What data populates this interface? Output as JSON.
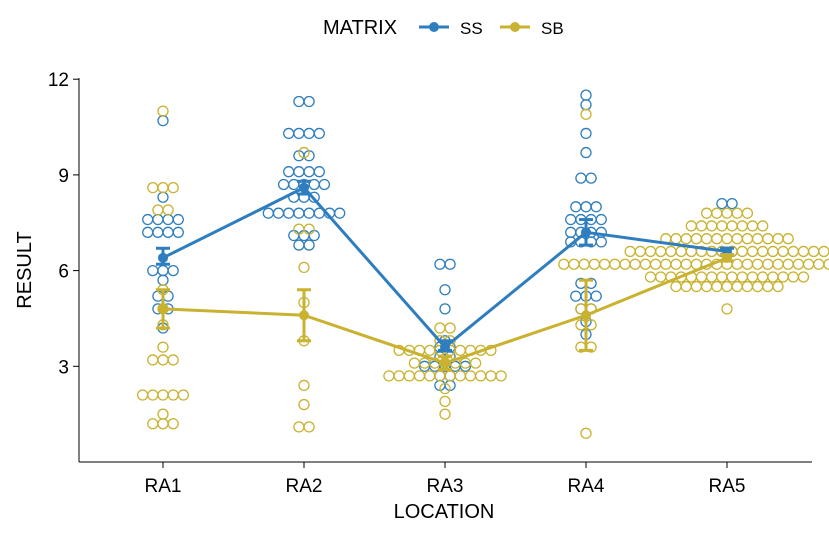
{
  "chart_data": {
    "type": "line",
    "xlabel": "LOCATION",
    "ylabel": "RESULT",
    "categories": [
      "RA1",
      "RA2",
      "RA3",
      "RA4",
      "RA5"
    ],
    "ylim": [
      0,
      12
    ],
    "yticks": [
      3,
      6,
      9,
      12
    ],
    "grid": false,
    "legend_title": "MATRIX",
    "legend_position": "top",
    "series": [
      {
        "name": "SS",
        "color": "#2E7EBF",
        "means": [
          6.4,
          8.6,
          3.6,
          7.2,
          6.6
        ],
        "error": [
          [
            6.2,
            6.7
          ],
          [
            8.4,
            8.8
          ],
          [
            3.5,
            3.8
          ],
          [
            6.8,
            7.6
          ],
          [
            6.5,
            6.7
          ]
        ],
        "points": [
          [
            10.7,
            8.3,
            7.6,
            7.6,
            7.6,
            7.6,
            7.2,
            7.2,
            7.2,
            7.2,
            6.0,
            6.0,
            6.0,
            5.7,
            5.2,
            5.2,
            4.8,
            4.8,
            4.2
          ],
          [
            11.3,
            11.3,
            10.3,
            10.3,
            10.3,
            10.3,
            9.6,
            9.6,
            9.1,
            9.1,
            9.1,
            9.1,
            8.7,
            8.7,
            8.7,
            8.7,
            8.7,
            8.3,
            8.3,
            8.3,
            7.8,
            7.8,
            7.8,
            7.8,
            7.8,
            7.8,
            7.8,
            7.8,
            7.1,
            7.1,
            7.1,
            6.8,
            6.8
          ],
          [
            6.2,
            6.2,
            5.4,
            4.8,
            3.8,
            3.6,
            3.6,
            3.3,
            3.3,
            3.0,
            3.0,
            3.0,
            3.0,
            3.0,
            2.7,
            2.7,
            2.4,
            2.4
          ],
          [
            11.5,
            11.2,
            10.3,
            9.7,
            8.9,
            8.9,
            8.0,
            8.0,
            8.0,
            7.6,
            7.6,
            7.6,
            7.6,
            7.2,
            7.2,
            7.2,
            7.2,
            6.9,
            6.9,
            6.9,
            6.9,
            5.6,
            5.6,
            5.2,
            5.2,
            5.2,
            4.8,
            4.8,
            4.4,
            4.0
          ],
          [
            8.1,
            8.1,
            6.6,
            6.6
          ]
        ]
      },
      {
        "name": "SB",
        "color": "#C9B22F",
        "means": [
          4.8,
          4.6,
          3.1,
          4.6,
          6.4
        ],
        "error": [
          [
            4.2,
            5.4
          ],
          [
            3.8,
            5.4
          ],
          [
            2.9,
            3.3
          ],
          [
            3.5,
            5.7
          ],
          [
            6.3,
            6.5
          ]
        ],
        "points": [
          [
            11.0,
            8.6,
            8.6,
            8.6,
            7.9,
            7.9,
            5.4,
            4.8,
            4.3,
            3.6,
            3.2,
            3.2,
            3.2,
            2.1,
            2.1,
            2.1,
            2.1,
            2.1,
            1.5,
            1.2,
            1.2,
            1.2
          ],
          [
            9.7,
            7.3,
            7.3,
            6.1,
            5.0,
            3.8,
            2.4,
            1.8,
            1.1,
            1.1
          ],
          [
            4.2,
            4.2,
            3.8,
            3.8,
            3.5,
            3.5,
            3.5,
            3.5,
            3.5,
            3.5,
            3.5,
            3.5,
            3.5,
            3.5,
            3.1,
            3.1,
            3.1,
            3.1,
            3.1,
            3.1,
            3.1,
            2.7,
            2.7,
            2.7,
            2.7,
            2.7,
            2.7,
            2.7,
            2.7,
            2.7,
            2.7,
            2.7,
            2.7,
            2.3,
            1.9,
            1.5
          ],
          [
            10.9,
            4.8,
            4.8,
            4.3,
            4.3,
            3.6,
            3.6,
            0.9
          ],
          [
            7.8,
            7.8,
            7.8,
            7.8,
            7.8,
            7.4,
            7.4,
            7.4,
            7.4,
            7.4,
            7.4,
            7.4,
            7.4,
            7.0,
            7.0,
            7.0,
            7.0,
            7.0,
            7.0,
            7.0,
            7.0,
            7.0,
            7.0,
            7.0,
            7.0,
            7.0,
            6.6,
            6.6,
            6.6,
            6.6,
            6.6,
            6.6,
            6.6,
            6.6,
            6.6,
            6.6,
            6.6,
            6.6,
            6.6,
            6.6,
            6.6,
            6.6,
            6.6,
            6.6,
            6.6,
            6.6,
            6.2,
            6.2,
            6.2,
            6.2,
            6.2,
            6.2,
            6.2,
            6.2,
            6.2,
            6.2,
            6.2,
            6.2,
            6.2,
            6.2,
            6.2,
            6.2,
            6.2,
            6.2,
            6.2,
            6.2,
            6.2,
            6.2,
            6.2,
            6.2,
            6.2,
            6.2,
            6.2,
            6.2,
            6.2,
            6.2,
            6.2,
            6.2,
            6.2,
            5.8,
            5.8,
            5.8,
            5.8,
            5.8,
            5.8,
            5.8,
            5.8,
            5.8,
            5.8,
            5.8,
            5.8,
            5.8,
            5.8,
            5.8,
            5.8,
            5.5,
            5.5,
            5.5,
            5.5,
            5.5,
            5.5,
            5.5,
            5.5,
            5.5,
            5.5,
            5.5,
            4.8
          ]
        ]
      }
    ]
  }
}
